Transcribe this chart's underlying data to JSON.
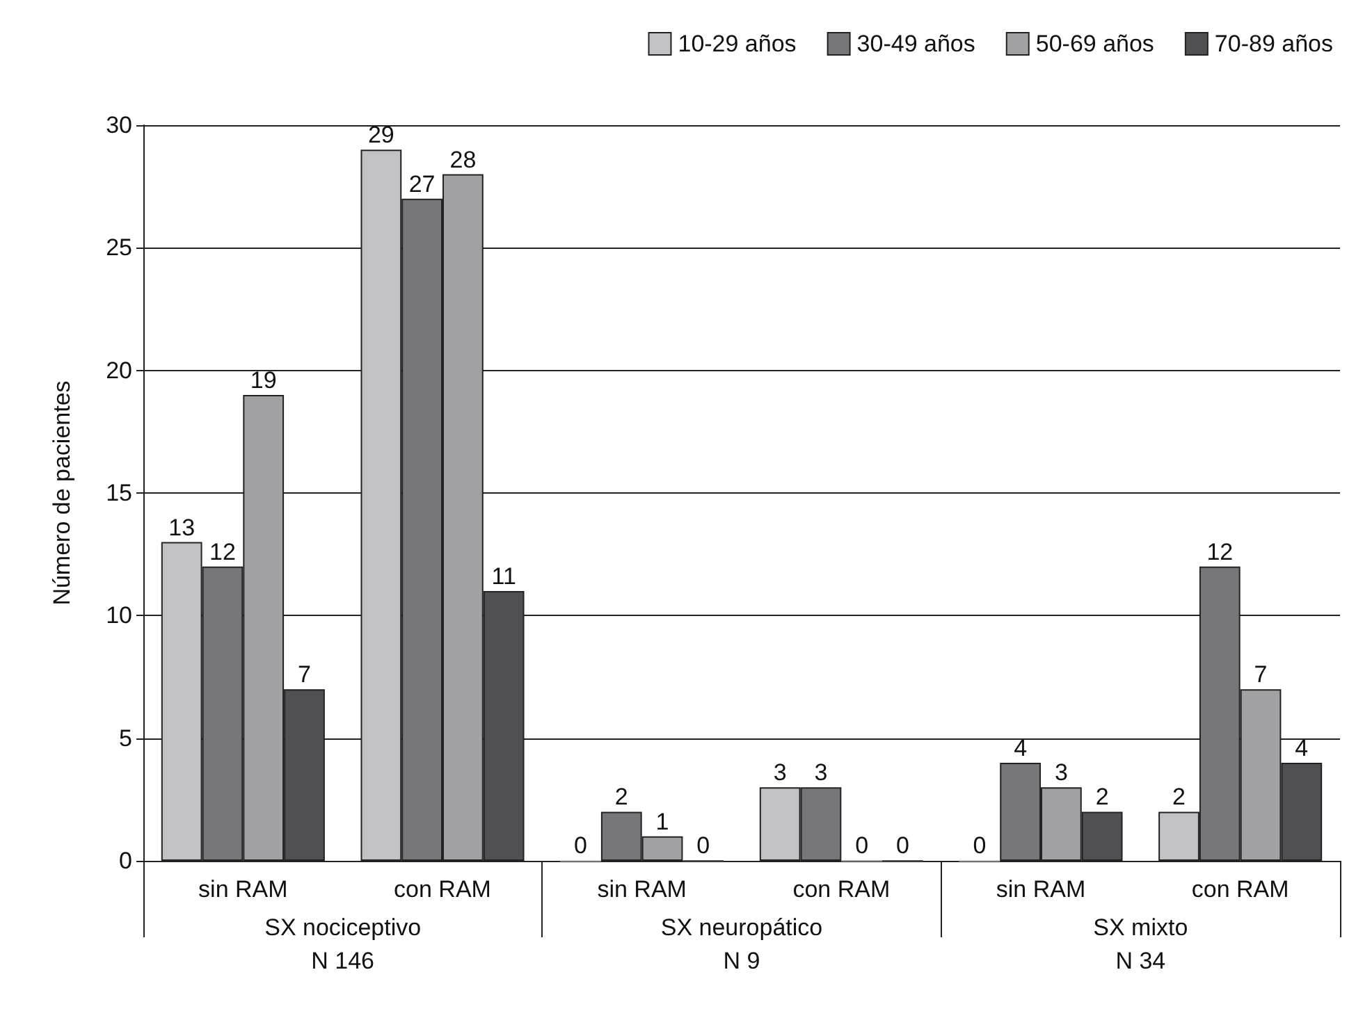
{
  "chart_data": {
    "type": "bar",
    "ylabel": "Número de pacientes",
    "categories": [
      "sin RAM",
      "con RAM",
      "sin RAM",
      "con RAM",
      "sin RAM",
      "con RAM"
    ],
    "annotations": [
      "SX nociceptivo\nN 146",
      "SX neuropático\nN 9",
      "SX mixto\nN 34"
    ],
    "series": [
      {
        "name": "10-29 años",
        "color": "#c2c2c6",
        "values": [
          13,
          29,
          0,
          3,
          0,
          2
        ]
      },
      {
        "name": "30-49 años",
        "color": "#77777b",
        "values": [
          12,
          27,
          2,
          3,
          4,
          12
        ]
      },
      {
        "name": "50-69 años",
        "color": "#a2a2a5",
        "values": [
          19,
          28,
          1,
          0,
          3,
          7
        ]
      },
      {
        "name": "70-89 años",
        "color": "#505054",
        "values": [
          7,
          11,
          0,
          0,
          2,
          4
        ]
      }
    ],
    "ylim": [
      0,
      30
    ],
    "yticks": [
      0,
      5,
      10,
      15,
      20,
      25,
      30
    ],
    "grid": "y",
    "legend": "top right",
    "data_labels": true
  }
}
